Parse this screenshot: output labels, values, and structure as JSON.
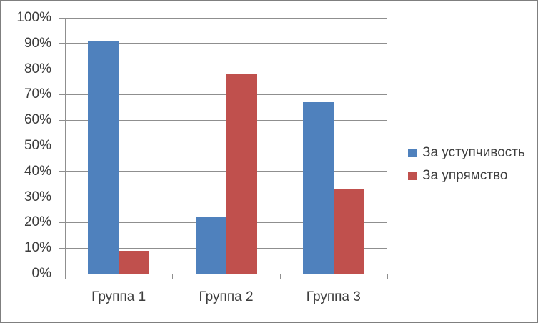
{
  "chart_data": {
    "type": "bar",
    "categories": [
      "Группа 1",
      "Группа 2",
      "Группа 3"
    ],
    "series": [
      {
        "name": "За уступчивость",
        "color": "#4F81BD",
        "values": [
          91,
          22,
          67
        ]
      },
      {
        "name": "За упрямство",
        "color": "#C0504D",
        "values": [
          9,
          78,
          33
        ]
      }
    ],
    "ylim": [
      0,
      100
    ],
    "ytick_step": 10,
    "ytick_labels": [
      "0%",
      "10%",
      "20%",
      "30%",
      "40%",
      "50%",
      "60%",
      "70%",
      "80%",
      "90%",
      "100%"
    ],
    "grid": "horizontal",
    "legend_position": "right"
  },
  "colors": {
    "gridline": "#8f8f8f",
    "axis": "#8f8f8f",
    "frame_border": "#7f7f7f",
    "text": "#3d3d3d"
  }
}
